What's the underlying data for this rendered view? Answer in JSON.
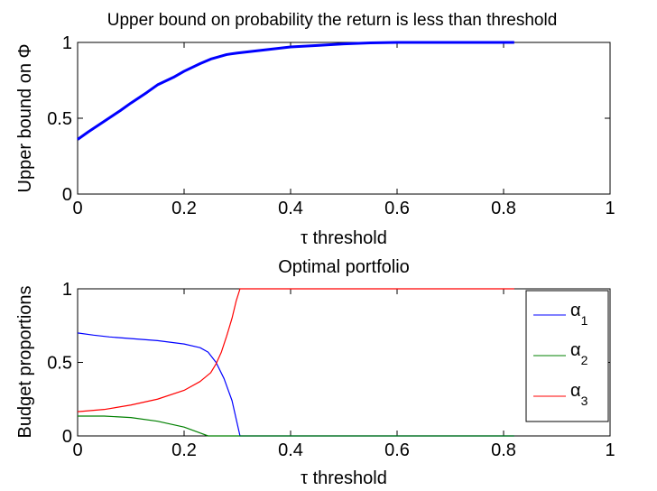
{
  "chart_data": [
    {
      "type": "line",
      "title": "Upper bound on probability the return is less than threshold",
      "xlabel": "τ threshold",
      "ylabel": "Upper bound on Φ",
      "xlim": [
        0,
        1
      ],
      "ylim": [
        0,
        1
      ],
      "xticks": [
        0,
        0.2,
        0.4,
        0.6,
        0.8,
        1
      ],
      "yticks": [
        0,
        0.5,
        1
      ],
      "xtick_labels": [
        "0",
        "0.2",
        "0.4",
        "0.6",
        "0.8",
        "1"
      ],
      "ytick_labels": [
        "0",
        "0.5",
        "1"
      ],
      "grid": false,
      "series": [
        {
          "color": "#0000ff",
          "points": [
            [
              0,
              0.36
            ],
            [
              0.02,
              0.41
            ],
            [
              0.05,
              0.48
            ],
            [
              0.08,
              0.55
            ],
            [
              0.1,
              0.6
            ],
            [
              0.13,
              0.67
            ],
            [
              0.15,
              0.72
            ],
            [
              0.18,
              0.77
            ],
            [
              0.2,
              0.81
            ],
            [
              0.23,
              0.86
            ],
            [
              0.25,
              0.89
            ],
            [
              0.28,
              0.92
            ],
            [
              0.3,
              0.93
            ],
            [
              0.35,
              0.95
            ],
            [
              0.4,
              0.97
            ],
            [
              0.45,
              0.98
            ],
            [
              0.5,
              0.99
            ],
            [
              0.55,
              0.997
            ],
            [
              0.6,
              1.0
            ],
            [
              0.7,
              1.0
            ],
            [
              0.82,
              1.0
            ]
          ]
        }
      ]
    },
    {
      "type": "line",
      "title": "Optimal portfolio",
      "xlabel": "τ threshold",
      "ylabel": "Budget proportions",
      "xlim": [
        0,
        1
      ],
      "ylim": [
        0,
        1
      ],
      "xticks": [
        0,
        0.2,
        0.4,
        0.6,
        0.8,
        1
      ],
      "yticks": [
        0,
        0.5,
        1
      ],
      "xtick_labels": [
        "0",
        "0.2",
        "0.4",
        "0.6",
        "0.8",
        "1"
      ],
      "ytick_labels": [
        "0",
        "0.5",
        "1"
      ],
      "grid": false,
      "legend_position": "top-right",
      "series": [
        {
          "name": "α",
          "subscript": "1",
          "color": "#0000ff",
          "points": [
            [
              0,
              0.7
            ],
            [
              0.03,
              0.685
            ],
            [
              0.06,
              0.673
            ],
            [
              0.1,
              0.662
            ],
            [
              0.15,
              0.648
            ],
            [
              0.2,
              0.625
            ],
            [
              0.23,
              0.6
            ],
            [
              0.245,
              0.57
            ],
            [
              0.26,
              0.5
            ],
            [
              0.275,
              0.39
            ],
            [
              0.29,
              0.24
            ],
            [
              0.3,
              0.08
            ],
            [
              0.305,
              0.0
            ],
            [
              0.5,
              0.0
            ],
            [
              0.82,
              0.0
            ]
          ]
        },
        {
          "name": "α",
          "subscript": "2",
          "color": "#008000",
          "points": [
            [
              0,
              0.135
            ],
            [
              0.05,
              0.135
            ],
            [
              0.1,
              0.125
            ],
            [
              0.15,
              0.1
            ],
            [
              0.2,
              0.06
            ],
            [
              0.23,
              0.02
            ],
            [
              0.245,
              0.0
            ],
            [
              0.5,
              0.0
            ],
            [
              0.82,
              0.0
            ]
          ]
        },
        {
          "name": "α",
          "subscript": "3",
          "color": "#ff0000",
          "points": [
            [
              0,
              0.165
            ],
            [
              0.05,
              0.18
            ],
            [
              0.1,
              0.21
            ],
            [
              0.15,
              0.25
            ],
            [
              0.2,
              0.31
            ],
            [
              0.23,
              0.37
            ],
            [
              0.25,
              0.43
            ],
            [
              0.26,
              0.49
            ],
            [
              0.27,
              0.57
            ],
            [
              0.28,
              0.68
            ],
            [
              0.29,
              0.8
            ],
            [
              0.298,
              0.92
            ],
            [
              0.305,
              1.0
            ],
            [
              0.5,
              1.0
            ],
            [
              0.82,
              1.0
            ]
          ]
        }
      ]
    }
  ]
}
